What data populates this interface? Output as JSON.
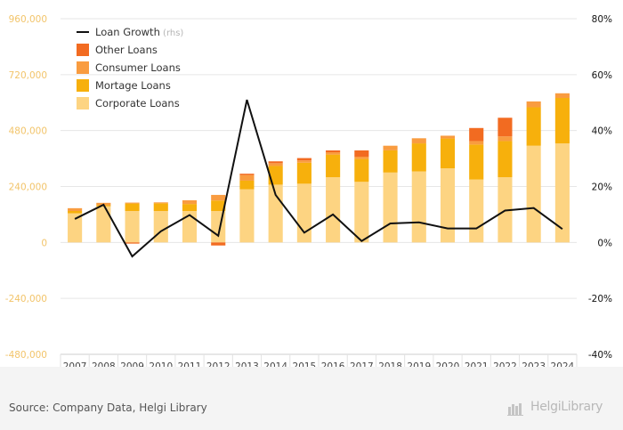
{
  "chart_data": {
    "type": "bar",
    "stacked": true,
    "categories": [
      "2007",
      "2008",
      "2009",
      "2010",
      "2011",
      "2012",
      "2013",
      "2014",
      "2015",
      "2016",
      "2017",
      "2018",
      "2019",
      "2020",
      "2021",
      "2022",
      "2023",
      "2024"
    ],
    "series": [
      {
        "name": "Corporate Loans",
        "color": "#fdd482",
        "axis": "left",
        "values": [
          125000,
          155000,
          135000,
          135000,
          135000,
          135000,
          228000,
          248000,
          252000,
          280000,
          260000,
          300000,
          305000,
          318000,
          270000,
          280000,
          415000,
          425000
        ]
      },
      {
        "name": "Mortage Loans",
        "color": "#f7b00c",
        "axis": "left",
        "values": [
          10000,
          5000,
          32000,
          33000,
          30000,
          45000,
          37000,
          80000,
          90000,
          97000,
          98000,
          95000,
          120000,
          128000,
          150000,
          155000,
          165000,
          195000
        ]
      },
      {
        "name": "Consumer Loans",
        "color": "#f99c40",
        "axis": "left",
        "values": [
          12000,
          10000,
          4000,
          4000,
          16000,
          24000,
          24000,
          12000,
          10000,
          10000,
          10000,
          20000,
          22000,
          12000,
          15000,
          20000,
          25000,
          20000
        ]
      },
      {
        "name": "Other Loans",
        "color": "#f26b21",
        "axis": "left",
        "values": [
          0,
          0,
          -5000,
          0,
          0,
          -13000,
          6000,
          8000,
          10000,
          8000,
          27000,
          0,
          0,
          0,
          56000,
          80000,
          0,
          0
        ]
      },
      {
        "name": "Loan Growth",
        "color": "#111111",
        "type": "line",
        "axis": "right",
        "suffix": " (rhs)",
        "values": [
          8.4,
          13.5,
          -5,
          4,
          9.8,
          2.4,
          51,
          17,
          3.5,
          10,
          0.5,
          6.8,
          7.2,
          5,
          5,
          11.4,
          12.3,
          4.8
        ]
      }
    ],
    "left_axis": {
      "ylim": [
        -480000,
        960000
      ],
      "ticks": [
        "-480,000",
        "-240,000",
        "0",
        "240,000",
        "480,000",
        "720,000",
        "960,000"
      ]
    },
    "right_axis": {
      "ylim": [
        -40,
        80
      ],
      "ticks": [
        "-40%",
        "-20%",
        "0%",
        "20%",
        "40%",
        "60%",
        "80%"
      ]
    },
    "legend_position": "top-left",
    "grid": true
  },
  "legend": [
    {
      "label": "Loan Growth",
      "suffix": " (rhs)",
      "kind": "line",
      "color": "#111111"
    },
    {
      "label": "Other Loans",
      "kind": "box",
      "color": "#f26b21"
    },
    {
      "label": "Consumer Loans",
      "kind": "box",
      "color": "#f99c40"
    },
    {
      "label": "Mortage Loans",
      "kind": "box",
      "color": "#f7b00c"
    },
    {
      "label": "Corporate Loans",
      "kind": "box",
      "color": "#fdd482"
    }
  ],
  "colors": {
    "left_axis_text": "#f2c46a",
    "right_axis_text": "#111111",
    "grid": "#e6e6e6"
  },
  "footer": {
    "source": "Source: Company Data, Helgi Library",
    "brand": "HelgiLibrary",
    "brand_icon": "library-icon"
  }
}
